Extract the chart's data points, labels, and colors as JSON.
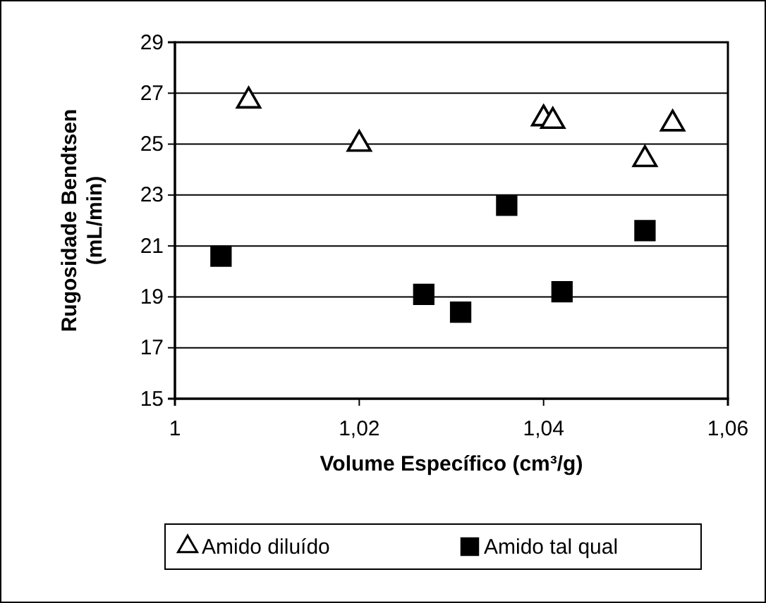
{
  "chart_data": {
    "type": "scatter",
    "xlabel": "Volume Específico (cm³/g)",
    "ylabel": "Rugosidade Bendtsen (mL/min)",
    "xlim": [
      1,
      1.06
    ],
    "xticks": [
      {
        "value": 1,
        "label": "1"
      },
      {
        "value": 1.02,
        "label": "1,02"
      },
      {
        "value": 1.04,
        "label": "1,04"
      },
      {
        "value": 1.06,
        "label": "1,06"
      }
    ],
    "ylim": [
      15,
      29
    ],
    "yticks": [
      15,
      17,
      19,
      21,
      23,
      25,
      27,
      29
    ],
    "grid": "y",
    "legend": "bottom",
    "series": [
      {
        "name": "Amido diluído",
        "color": "#000000",
        "marker": "triangle",
        "x": [
          1.008,
          1.02,
          1.04,
          1.041,
          1.051,
          1.054
        ],
        "values": [
          26.7,
          25.0,
          26.0,
          25.9,
          24.4,
          25.8
        ]
      },
      {
        "name": "Amido tal qual",
        "color": "#000000",
        "marker": "square",
        "x": [
          1.005,
          1.027,
          1.031,
          1.036,
          1.042,
          1.051
        ],
        "values": [
          20.6,
          19.1,
          18.4,
          22.6,
          19.2,
          21.6
        ]
      }
    ]
  }
}
